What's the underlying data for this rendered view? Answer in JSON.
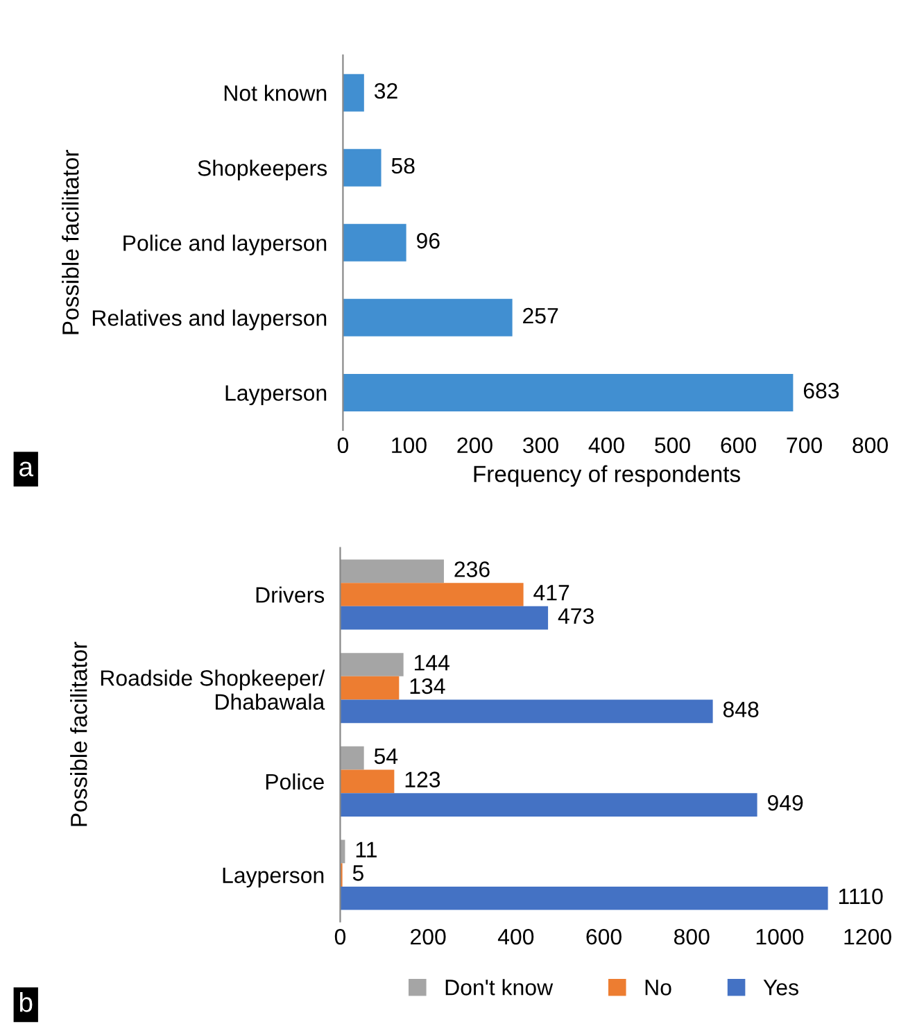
{
  "chart_data": [
    {
      "type": "bar",
      "orientation": "horizontal",
      "categories": [
        "Not known",
        "Shopkeepers",
        "Police and layperson",
        "Relatives and layperson",
        "Layperson"
      ],
      "values": [
        32,
        58,
        96,
        257,
        683
      ],
      "color": "#418fd1",
      "xlim": [
        0,
        800
      ],
      "xticks": [
        0,
        100,
        200,
        300,
        400,
        500,
        600,
        700,
        800
      ],
      "xlabel": "Frequency of respondents",
      "ylabel": "Possible facilitator",
      "data_labels": true,
      "grid": false,
      "legend": false,
      "annotations": [
        "a"
      ]
    },
    {
      "type": "bar",
      "orientation": "horizontal",
      "categories": [
        "Drivers",
        "Roadside Shopkeeper/\nDhabawala",
        "Police",
        "Layperson"
      ],
      "series": [
        {
          "name": "Don't know",
          "color": "#a5a5a5",
          "values": [
            236,
            144,
            54,
            11
          ]
        },
        {
          "name": "No",
          "color": "#ed7d31",
          "values": [
            417,
            134,
            123,
            5
          ]
        },
        {
          "name": "Yes",
          "color": "#4472c4",
          "values": [
            473,
            848,
            949,
            1110
          ]
        }
      ],
      "xlim": [
        0,
        1200
      ],
      "xticks": [
        0,
        200,
        400,
        600,
        800,
        1000,
        1200
      ],
      "ylabel": "Possible facilitator",
      "data_labels": true,
      "grid": false,
      "legend": "bottom",
      "annotations": [
        "b"
      ]
    }
  ]
}
